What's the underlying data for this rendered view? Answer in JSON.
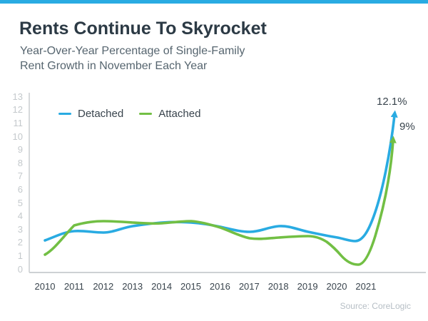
{
  "page": {
    "title": "Rents Continue To Skyrocket",
    "subtitle_line1": "Year-Over-Year Percentage of Single-Family",
    "subtitle_line2": "Rent Growth in November Each Year",
    "source": "Source: CoreLogic"
  },
  "colors": {
    "accent_bar": "#29abe2",
    "detached": "#29abe2",
    "attached": "#72bf44",
    "axis": "#cdd1d4"
  },
  "legend": {
    "detached_label": "Detached",
    "attached_label": "Attached"
  },
  "annotations": {
    "detached_end": "12.1%",
    "attached_end": "9%"
  },
  "chart_data": {
    "type": "line",
    "title": "Rents Continue To Skyrocket",
    "subtitle": "Year-Over-Year Percentage of Single-Family Rent Growth in November Each Year",
    "categories": [
      "2010",
      "2011",
      "2012",
      "2013",
      "2014",
      "2015",
      "2016",
      "2017",
      "2018",
      "2019",
      "2020",
      "2021"
    ],
    "series": [
      {
        "name": "Detached",
        "color": "#29abe2",
        "values": [
          2.2,
          2.9,
          2.8,
          3.2,
          3.5,
          3.5,
          3.2,
          2.8,
          3.3,
          2.8,
          2.5,
          12.1
        ]
      },
      {
        "name": "Attached",
        "color": "#72bf44",
        "values": [
          1.0,
          3.3,
          3.6,
          3.5,
          3.4,
          3.6,
          3.1,
          2.4,
          2.4,
          2.6,
          0.7,
          9.0
        ]
      }
    ],
    "xlabel": "",
    "ylabel": "",
    "ylim": [
      0,
      13
    ],
    "y_ticks": [
      0,
      1,
      2,
      3,
      4,
      5,
      6,
      7,
      8,
      9,
      10,
      11,
      12,
      13
    ],
    "grid": false,
    "legend_position": "inside-top-left",
    "annotations": [
      {
        "series": "Detached",
        "text": "12.1%",
        "year": "2021"
      },
      {
        "series": "Attached",
        "text": "9%",
        "year": "2021"
      }
    ],
    "source": "Source: CoreLogic"
  }
}
